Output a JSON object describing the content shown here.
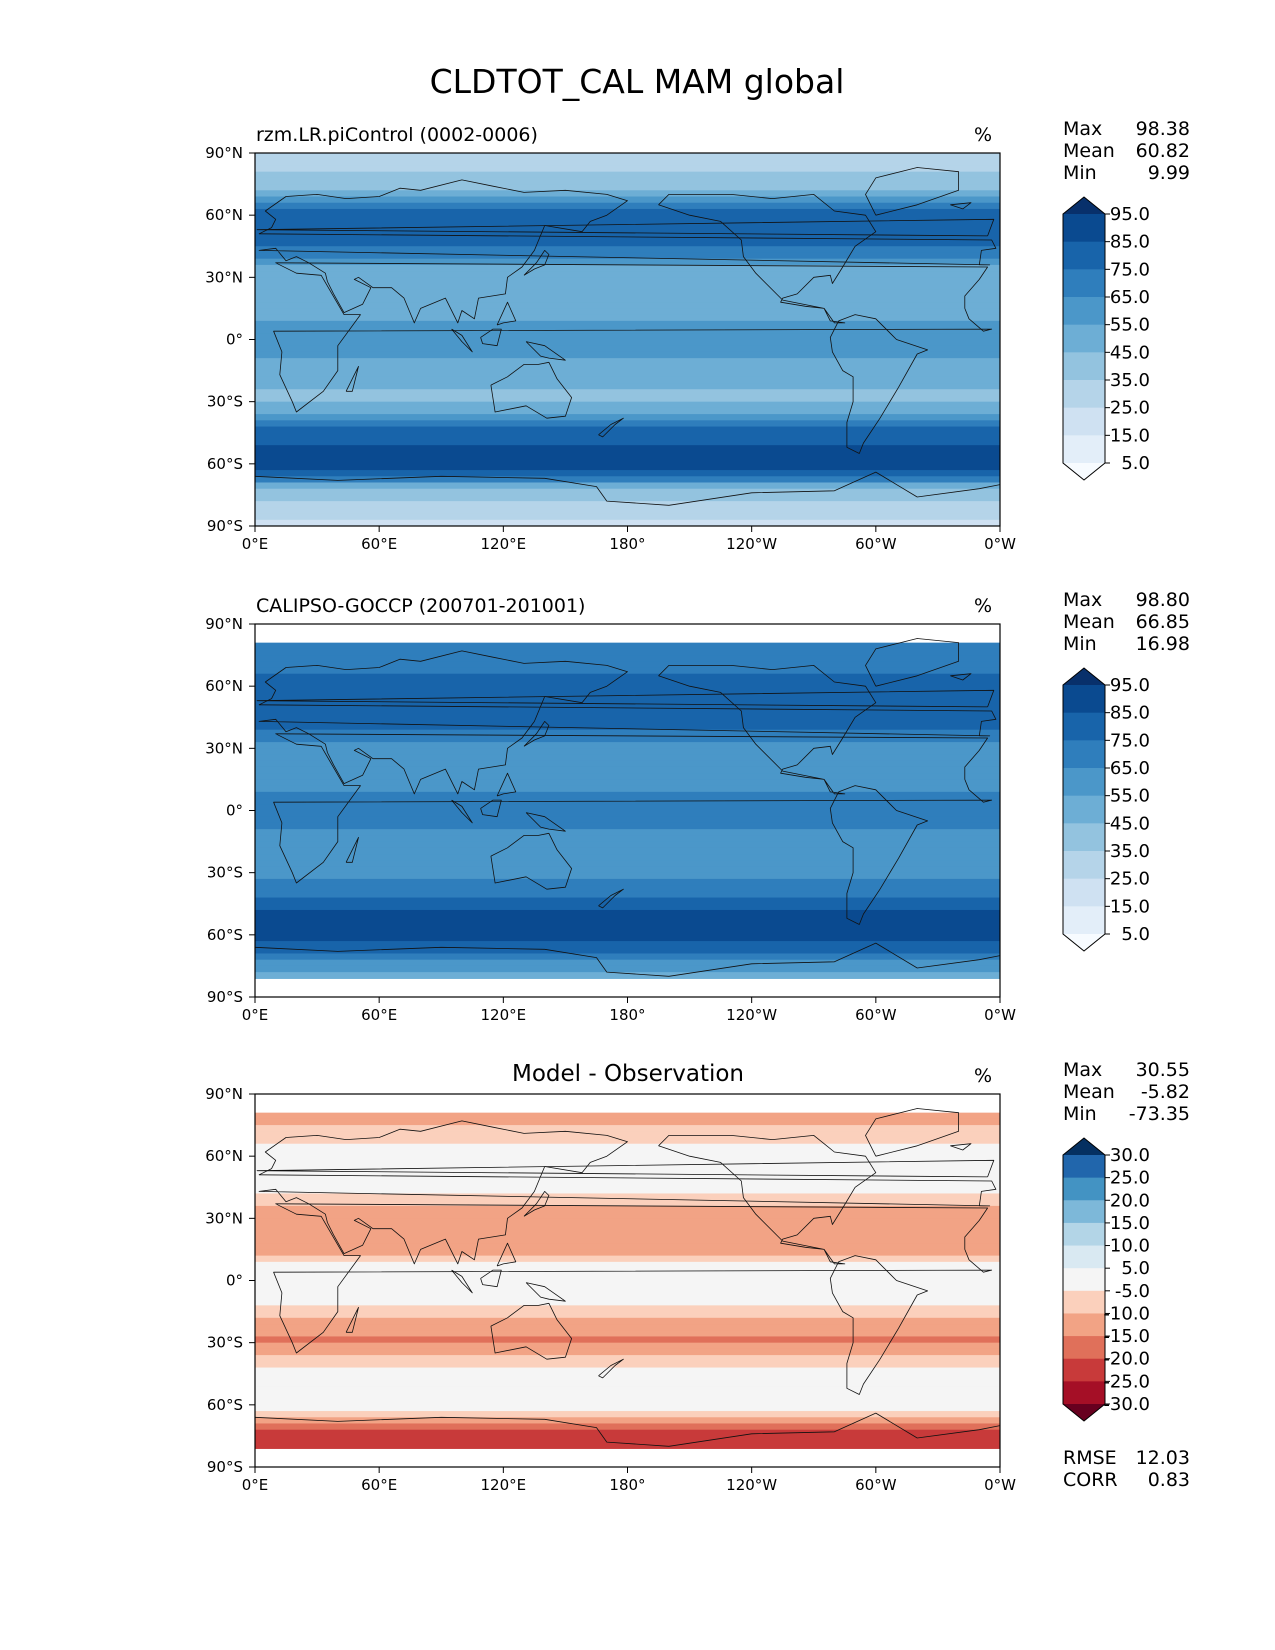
{
  "figure": {
    "title": "CLDTOT_CAL MAM global",
    "units_label": "%"
  },
  "chart_data": [
    {
      "type": "heatmap",
      "title": "rzm.LR.piControl (0002-0006)",
      "title_position": "left",
      "units": "%",
      "projection": "PlateCarree",
      "xticks": [
        "0°E",
        "60°E",
        "120°E",
        "180°",
        "120°W",
        "60°W",
        "0°W"
      ],
      "yticks": [
        "90°N",
        "60°N",
        "30°N",
        "0°",
        "30°S",
        "60°S",
        "90°S"
      ],
      "xlim": [
        0,
        360
      ],
      "ylim": [
        -90,
        90
      ],
      "stats": [
        {
          "label": "Max",
          "value": "98.38"
        },
        {
          "label": "Mean",
          "value": "60.82"
        },
        {
          "label": "Min",
          "value": "9.99"
        }
      ],
      "colorbar": {
        "levels": [
          5,
          15,
          25,
          35,
          45,
          55,
          65,
          75,
          85,
          95
        ],
        "tick_labels": [
          "5.0",
          "15.0",
          "25.0",
          "35.0",
          "45.0",
          "55.0",
          "65.0",
          "75.0",
          "85.0",
          "95.0"
        ],
        "colors": [
          "#f7fbff",
          "#e3eef9",
          "#cfe1f2",
          "#b5d4e9",
          "#93c3df",
          "#6daed5",
          "#4b97c9",
          "#2f7ebc",
          "#1864aa",
          "#0a4a90",
          "#08306b"
        ],
        "extend": "both"
      },
      "lat_profile": [
        {
          "lat": 90,
          "value": 28
        },
        {
          "lat": 75,
          "value": 40
        },
        {
          "lat": 60,
          "value": 82
        },
        {
          "lat": 45,
          "value": 78
        },
        {
          "lat": 30,
          "value": 45
        },
        {
          "lat": 15,
          "value": 50
        },
        {
          "lat": 0,
          "value": 62
        },
        {
          "lat": -15,
          "value": 50
        },
        {
          "lat": -30,
          "value": 42
        },
        {
          "lat": -45,
          "value": 80
        },
        {
          "lat": -60,
          "value": 94
        },
        {
          "lat": -75,
          "value": 38
        },
        {
          "lat": -90,
          "value": 20
        }
      ],
      "data_lat_range": [
        -90,
        90
      ]
    },
    {
      "type": "heatmap",
      "title": "CALIPSO-GOCCP (200701-201001)",
      "title_position": "left",
      "units": "%",
      "projection": "PlateCarree",
      "xticks": [
        "0°E",
        "60°E",
        "120°E",
        "180°",
        "120°W",
        "60°W",
        "0°W"
      ],
      "yticks": [
        "90°N",
        "60°N",
        "30°N",
        "0°",
        "30°S",
        "60°S",
        "90°S"
      ],
      "xlim": [
        0,
        360
      ],
      "ylim": [
        -90,
        90
      ],
      "stats": [
        {
          "label": "Max",
          "value": "98.80"
        },
        {
          "label": "Mean",
          "value": "66.85"
        },
        {
          "label": "Min",
          "value": "16.98"
        }
      ],
      "colorbar": {
        "levels": [
          5,
          15,
          25,
          35,
          45,
          55,
          65,
          75,
          85,
          95
        ],
        "tick_labels": [
          "5.0",
          "15.0",
          "25.0",
          "35.0",
          "45.0",
          "55.0",
          "65.0",
          "75.0",
          "85.0",
          "95.0"
        ],
        "colors": [
          "#f7fbff",
          "#e3eef9",
          "#cfe1f2",
          "#b5d4e9",
          "#93c3df",
          "#6daed5",
          "#4b97c9",
          "#2f7ebc",
          "#1864aa",
          "#0a4a90",
          "#08306b"
        ],
        "extend": "both"
      },
      "lat_profile": [
        {
          "lat": 81,
          "value": 70
        },
        {
          "lat": 70,
          "value": 72
        },
        {
          "lat": 60,
          "value": 78
        },
        {
          "lat": 45,
          "value": 82
        },
        {
          "lat": 30,
          "value": 60
        },
        {
          "lat": 15,
          "value": 62
        },
        {
          "lat": 0,
          "value": 70
        },
        {
          "lat": -15,
          "value": 60
        },
        {
          "lat": -30,
          "value": 58
        },
        {
          "lat": -45,
          "value": 82
        },
        {
          "lat": -60,
          "value": 92
        },
        {
          "lat": -70,
          "value": 70
        },
        {
          "lat": -81,
          "value": 45
        }
      ],
      "data_lat_range": [
        -81,
        81
      ]
    },
    {
      "type": "heatmap",
      "title": "Model - Observation",
      "title_position": "center",
      "units": "%",
      "projection": "PlateCarree",
      "xticks": [
        "0°E",
        "60°E",
        "120°E",
        "180°",
        "120°W",
        "60°W",
        "0°W"
      ],
      "yticks": [
        "90°N",
        "60°N",
        "30°N",
        "0°",
        "30°S",
        "60°S",
        "90°S"
      ],
      "xlim": [
        0,
        360
      ],
      "ylim": [
        -90,
        90
      ],
      "stats": [
        {
          "label": "Max",
          "value": "30.55"
        },
        {
          "label": "Mean",
          "value": "-5.82"
        },
        {
          "label": "Min",
          "value": "-73.35"
        }
      ],
      "metrics": [
        {
          "label": "RMSE",
          "value": "12.03"
        },
        {
          "label": "CORR",
          "value": "0.83"
        }
      ],
      "colorbar": {
        "levels": [
          -30,
          -25,
          -20,
          -15,
          -10,
          -5,
          5,
          10,
          15,
          20,
          25,
          30
        ],
        "tick_labels": [
          "-30.0",
          "-25.0",
          "-20.0",
          "-15.0",
          "-10.0",
          "-5.0",
          "5.0",
          "10.0",
          "15.0",
          "20.0",
          "25.0",
          "30.0"
        ],
        "colors": [
          "#67001f",
          "#a50f26",
          "#c83a3a",
          "#e0705a",
          "#f2a385",
          "#fbd0bc",
          "#f5f5f5",
          "#d9e9f2",
          "#b3d5e7",
          "#7db8d9",
          "#4393c3",
          "#2166ac",
          "#053061"
        ],
        "extend": "both"
      },
      "lat_profile": [
        {
          "lat": 81,
          "value": -12
        },
        {
          "lat": 70,
          "value": -8
        },
        {
          "lat": 60,
          "value": -2
        },
        {
          "lat": 45,
          "value": -4
        },
        {
          "lat": 30,
          "value": -14
        },
        {
          "lat": 15,
          "value": -12
        },
        {
          "lat": 0,
          "value": 2
        },
        {
          "lat": -15,
          "value": -8
        },
        {
          "lat": -30,
          "value": -16
        },
        {
          "lat": -45,
          "value": -2
        },
        {
          "lat": -60,
          "value": 0
        },
        {
          "lat": -70,
          "value": -18
        },
        {
          "lat": -81,
          "value": -25
        }
      ],
      "data_lat_range": [
        -81,
        81
      ]
    }
  ]
}
